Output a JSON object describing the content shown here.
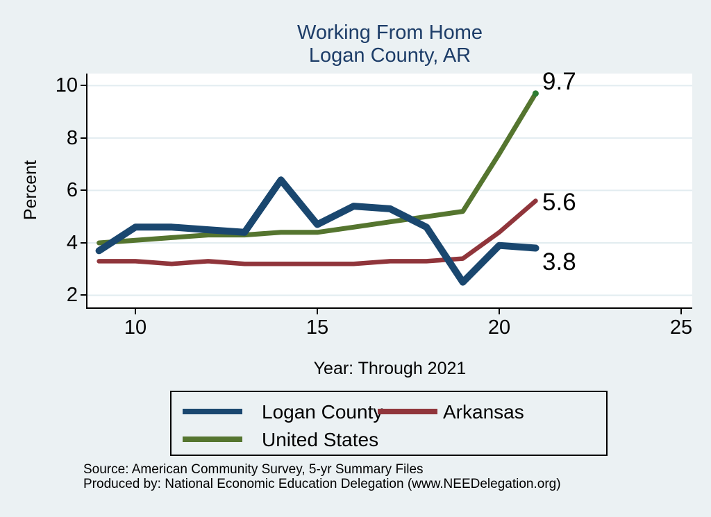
{
  "title": {
    "line1": "Working From Home",
    "line2": "Logan County, AR",
    "color": "#1d3d68"
  },
  "chart_data": {
    "type": "line",
    "x": [
      9,
      10,
      11,
      12,
      13,
      14,
      15,
      16,
      17,
      18,
      19,
      20,
      21
    ],
    "xlabel": "Year: Through 2021",
    "ylabel": "Percent",
    "x_ticks": [
      10,
      15,
      20,
      25
    ],
    "y_ticks": [
      2,
      4,
      6,
      8,
      10
    ],
    "xlim": [
      8.683,
      25.305
    ],
    "ylim": [
      1.536,
      10.46
    ],
    "grid": true,
    "legend_position": "bottom",
    "series": [
      {
        "name": "Logan County",
        "color": "#1a476f",
        "values": [
          3.7,
          4.6,
          4.6,
          4.5,
          4.4,
          6.4,
          4.7,
          5.4,
          5.3,
          4.6,
          2.5,
          3.9,
          3.8
        ],
        "end_label": "3.8"
      },
      {
        "name": "Arkansas",
        "color": "#90353b",
        "values": [
          3.3,
          3.3,
          3.2,
          3.3,
          3.2,
          3.2,
          3.2,
          3.2,
          3.3,
          3.3,
          3.4,
          4.4,
          5.6
        ],
        "end_label": "5.6"
      },
      {
        "name": "United States",
        "color": "#55752f",
        "values": [
          4.0,
          4.1,
          4.2,
          4.3,
          4.3,
          4.4,
          4.4,
          4.6,
          4.8,
          5.0,
          5.2,
          7.4,
          9.7
        ],
        "end_label": "9.7"
      }
    ]
  },
  "colors": {
    "background": "#ebf1f3",
    "plot_background": "#ffffff",
    "gridline": "#e2ecf0",
    "axis": "#000000",
    "end_dot_green": "#2e7d32"
  },
  "footer": {
    "line1": "Source: American Community Survey, 5-yr Summary Files",
    "line2": "Produced by: National Economic Education Delegation (www.NEEDelegation.org)"
  }
}
